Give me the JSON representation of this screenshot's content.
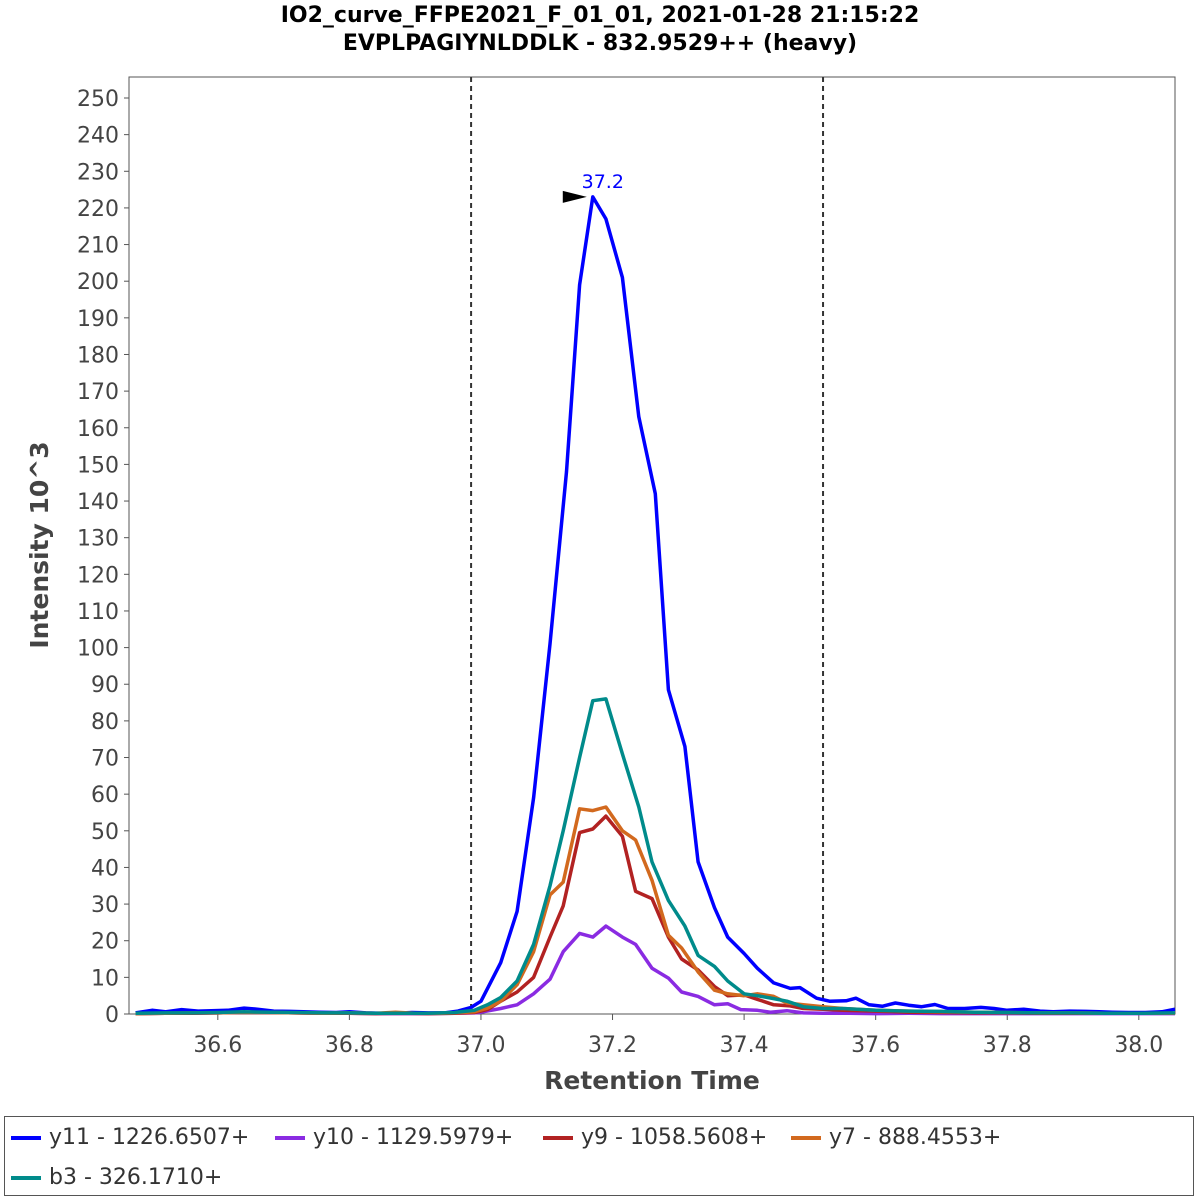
{
  "chart_data": {
    "type": "line",
    "title_line1": "IO2_curve_FFPE2021_F_01_01, 2021-01-28 21:15:22",
    "title_line2": "EVPLPAGIYNLDDLK - 832.9529++ (heavy)",
    "xlabel": "Retention Time",
    "ylabel": "Intensity 10^3",
    "xlim": [
      36.465,
      38.055
    ],
    "ylim": [
      0,
      250
    ],
    "x_ticks": [
      "36.6",
      "36.8",
      "37.0",
      "37.2",
      "37.4",
      "37.6",
      "37.8",
      "38.0"
    ],
    "y_ticks": [
      "0",
      "10",
      "20",
      "30",
      "40",
      "50",
      "60",
      "70",
      "80",
      "90",
      "100",
      "110",
      "120",
      "130",
      "140",
      "150",
      "160",
      "170",
      "180",
      "190",
      "200",
      "210",
      "220",
      "230",
      "240",
      "250"
    ],
    "boundaries": [
      36.985,
      37.52
    ],
    "peak_annotation": {
      "label": "37.2",
      "x": 37.17,
      "y": 223
    },
    "legend_position": "bottom",
    "series": [
      {
        "name": "y11 - 1226.6507+",
        "color": "#0000ff",
        "points": [
          [
            36.475,
            0.3
          ],
          [
            36.5,
            1.0
          ],
          [
            36.52,
            0.6
          ],
          [
            36.545,
            1.2
          ],
          [
            36.57,
            0.8
          ],
          [
            36.59,
            0.9
          ],
          [
            36.615,
            1.0
          ],
          [
            36.64,
            1.6
          ],
          [
            36.66,
            1.3
          ],
          [
            36.685,
            0.8
          ],
          [
            36.71,
            0.7
          ],
          [
            36.73,
            0.6
          ],
          [
            36.755,
            0.5
          ],
          [
            36.78,
            0.4
          ],
          [
            36.8,
            0.6
          ],
          [
            36.825,
            0.3
          ],
          [
            36.85,
            0.2
          ],
          [
            36.87,
            0.2
          ],
          [
            36.895,
            0.4
          ],
          [
            36.92,
            0.3
          ],
          [
            36.945,
            0.3
          ],
          [
            36.965,
            0.8
          ],
          [
            36.985,
            1.8
          ],
          [
            37.0,
            3.5
          ],
          [
            37.03,
            14
          ],
          [
            37.055,
            28
          ],
          [
            37.08,
            59
          ],
          [
            37.105,
            101
          ],
          [
            37.13,
            148
          ],
          [
            37.15,
            199
          ],
          [
            37.17,
            223
          ],
          [
            37.19,
            217
          ],
          [
            37.215,
            201
          ],
          [
            37.24,
            163
          ],
          [
            37.265,
            142
          ],
          [
            37.285,
            88.5
          ],
          [
            37.31,
            73
          ],
          [
            37.33,
            41.5
          ],
          [
            37.355,
            29
          ],
          [
            37.375,
            21
          ],
          [
            37.4,
            16.5
          ],
          [
            37.42,
            12.5
          ],
          [
            37.445,
            8.5
          ],
          [
            37.47,
            7.0
          ],
          [
            37.485,
            7.2
          ],
          [
            37.51,
            4.3
          ],
          [
            37.53,
            3.5
          ],
          [
            37.555,
            3.6
          ],
          [
            37.57,
            4.3
          ],
          [
            37.59,
            2.5
          ],
          [
            37.61,
            2.1
          ],
          [
            37.63,
            3.0
          ],
          [
            37.65,
            2.4
          ],
          [
            37.67,
            2.0
          ],
          [
            37.69,
            2.6
          ],
          [
            37.71,
            1.5
          ],
          [
            37.735,
            1.5
          ],
          [
            37.76,
            1.8
          ],
          [
            37.78,
            1.5
          ],
          [
            37.8,
            1.0
          ],
          [
            37.825,
            1.3
          ],
          [
            37.85,
            0.8
          ],
          [
            37.87,
            0.6
          ],
          [
            37.895,
            0.8
          ],
          [
            37.92,
            0.7
          ],
          [
            37.94,
            0.6
          ],
          [
            37.96,
            0.5
          ],
          [
            37.985,
            0.4
          ],
          [
            38.01,
            0.4
          ],
          [
            38.035,
            0.6
          ],
          [
            38.055,
            1.3
          ]
        ]
      },
      {
        "name": "y10 - 1129.5979+",
        "color": "#8a2be2",
        "points": [
          [
            36.475,
            0.1
          ],
          [
            36.52,
            0.2
          ],
          [
            36.56,
            0.2
          ],
          [
            36.6,
            0.3
          ],
          [
            36.64,
            0.5
          ],
          [
            36.68,
            0.4
          ],
          [
            36.72,
            0.3
          ],
          [
            36.76,
            0.2
          ],
          [
            36.8,
            0.2
          ],
          [
            36.84,
            0.1
          ],
          [
            36.88,
            0.1
          ],
          [
            36.92,
            0.1
          ],
          [
            36.96,
            0.2
          ],
          [
            36.99,
            0.3
          ],
          [
            37.0,
            0.5
          ],
          [
            37.03,
            1.5
          ],
          [
            37.055,
            2.5
          ],
          [
            37.08,
            5.5
          ],
          [
            37.105,
            9.5
          ],
          [
            37.125,
            17
          ],
          [
            37.15,
            22
          ],
          [
            37.17,
            21
          ],
          [
            37.19,
            24
          ],
          [
            37.215,
            21
          ],
          [
            37.235,
            19
          ],
          [
            37.26,
            12.5
          ],
          [
            37.285,
            9.8
          ],
          [
            37.305,
            6.0
          ],
          [
            37.33,
            4.8
          ],
          [
            37.355,
            2.5
          ],
          [
            37.375,
            2.8
          ],
          [
            37.395,
            1.2
          ],
          [
            37.42,
            1.0
          ],
          [
            37.44,
            0.5
          ],
          [
            37.465,
            0.9
          ],
          [
            37.49,
            0.3
          ],
          [
            37.52,
            0.2
          ],
          [
            37.56,
            0.2
          ],
          [
            37.6,
            0.1
          ],
          [
            37.65,
            0.2
          ],
          [
            37.7,
            0.1
          ],
          [
            37.75,
            0.1
          ],
          [
            37.8,
            0.1
          ],
          [
            37.85,
            0.1
          ],
          [
            37.9,
            0.1
          ],
          [
            37.95,
            0.1
          ],
          [
            38.0,
            0.1
          ],
          [
            38.055,
            0.1
          ]
        ]
      },
      {
        "name": "y9 - 1058.5608+",
        "color": "#b22222",
        "points": [
          [
            36.475,
            0.1
          ],
          [
            36.52,
            0.2
          ],
          [
            36.56,
            0.2
          ],
          [
            36.6,
            0.3
          ],
          [
            36.64,
            0.5
          ],
          [
            36.68,
            0.4
          ],
          [
            36.72,
            0.3
          ],
          [
            36.76,
            0.2
          ],
          [
            36.8,
            0.2
          ],
          [
            36.84,
            0.1
          ],
          [
            36.88,
            0.2
          ],
          [
            36.92,
            0.1
          ],
          [
            36.96,
            0.2
          ],
          [
            36.99,
            0.4
          ],
          [
            37.01,
            1.2
          ],
          [
            37.03,
            3.5
          ],
          [
            37.055,
            6
          ],
          [
            37.08,
            10
          ],
          [
            37.105,
            21
          ],
          [
            37.125,
            29.5
          ],
          [
            37.15,
            49.5
          ],
          [
            37.17,
            50.5
          ],
          [
            37.19,
            54
          ],
          [
            37.215,
            48.5
          ],
          [
            37.235,
            33.5
          ],
          [
            37.26,
            31.5
          ],
          [
            37.285,
            21
          ],
          [
            37.305,
            15
          ],
          [
            37.33,
            12
          ],
          [
            37.355,
            7.5
          ],
          [
            37.375,
            5
          ],
          [
            37.4,
            5.2
          ],
          [
            37.42,
            4.0
          ],
          [
            37.445,
            2.5
          ],
          [
            37.47,
            2.2
          ],
          [
            37.49,
            1.5
          ],
          [
            37.52,
            1.3
          ],
          [
            37.55,
            1.0
          ],
          [
            37.6,
            0.8
          ],
          [
            37.65,
            0.5
          ],
          [
            37.7,
            0.4
          ],
          [
            37.75,
            0.3
          ],
          [
            37.8,
            0.3
          ],
          [
            37.85,
            0.2
          ],
          [
            37.9,
            0.2
          ],
          [
            37.95,
            0.2
          ],
          [
            38.0,
            0.2
          ],
          [
            38.055,
            0.2
          ]
        ]
      },
      {
        "name": "y7 - 888.4553+",
        "color": "#d2691e",
        "points": [
          [
            36.475,
            0.1
          ],
          [
            36.52,
            0.2
          ],
          [
            36.56,
            0.3
          ],
          [
            36.6,
            0.3
          ],
          [
            36.64,
            0.5
          ],
          [
            36.68,
            0.4
          ],
          [
            36.72,
            0.3
          ],
          [
            36.76,
            0.2
          ],
          [
            36.8,
            0.3
          ],
          [
            36.84,
            0.2
          ],
          [
            36.87,
            0.5
          ],
          [
            36.9,
            0.2
          ],
          [
            36.94,
            0.2
          ],
          [
            36.97,
            0.4
          ],
          [
            36.99,
            0.6
          ],
          [
            37.01,
            1.6
          ],
          [
            37.03,
            3.5
          ],
          [
            37.055,
            8
          ],
          [
            37.08,
            17
          ],
          [
            37.105,
            32.5
          ],
          [
            37.125,
            36
          ],
          [
            37.15,
            56
          ],
          [
            37.17,
            55.5
          ],
          [
            37.19,
            56.5
          ],
          [
            37.215,
            50
          ],
          [
            37.235,
            47.5
          ],
          [
            37.26,
            36.5
          ],
          [
            37.285,
            21.5
          ],
          [
            37.305,
            18
          ],
          [
            37.33,
            11.5
          ],
          [
            37.355,
            6.5
          ],
          [
            37.375,
            5.5
          ],
          [
            37.4,
            5.0
          ],
          [
            37.42,
            5.5
          ],
          [
            37.445,
            4.8
          ],
          [
            37.465,
            3.0
          ],
          [
            37.49,
            2.5
          ],
          [
            37.52,
            2.0
          ],
          [
            37.55,
            1.5
          ],
          [
            37.6,
            1.0
          ],
          [
            37.65,
            0.8
          ],
          [
            37.7,
            0.6
          ],
          [
            37.75,
            0.5
          ],
          [
            37.8,
            0.4
          ],
          [
            37.85,
            0.3
          ],
          [
            37.9,
            0.3
          ],
          [
            37.95,
            0.2
          ],
          [
            38.0,
            0.2
          ],
          [
            38.055,
            0.2
          ]
        ]
      },
      {
        "name": "b3 - 326.1710+",
        "color": "#008b8b",
        "points": [
          [
            36.475,
            0.2
          ],
          [
            36.52,
            0.3
          ],
          [
            36.56,
            0.3
          ],
          [
            36.6,
            0.4
          ],
          [
            36.64,
            0.6
          ],
          [
            36.68,
            0.5
          ],
          [
            36.72,
            0.4
          ],
          [
            36.76,
            0.3
          ],
          [
            36.8,
            0.3
          ],
          [
            36.84,
            0.2
          ],
          [
            36.88,
            0.2
          ],
          [
            36.92,
            0.2
          ],
          [
            36.96,
            0.4
          ],
          [
            36.99,
            1.0
          ],
          [
            37.01,
            2.5
          ],
          [
            37.03,
            4.5
          ],
          [
            37.055,
            9
          ],
          [
            37.08,
            19
          ],
          [
            37.105,
            35
          ],
          [
            37.125,
            50
          ],
          [
            37.15,
            70
          ],
          [
            37.17,
            85.5
          ],
          [
            37.19,
            86
          ],
          [
            37.215,
            71
          ],
          [
            37.24,
            56.5
          ],
          [
            37.26,
            41.5
          ],
          [
            37.285,
            31
          ],
          [
            37.31,
            24
          ],
          [
            37.33,
            16
          ],
          [
            37.355,
            13
          ],
          [
            37.375,
            9.0
          ],
          [
            37.4,
            5.5
          ],
          [
            37.42,
            5.0
          ],
          [
            37.445,
            4.2
          ],
          [
            37.465,
            3.5
          ],
          [
            37.49,
            2.0
          ],
          [
            37.52,
            1.5
          ],
          [
            37.55,
            1.5
          ],
          [
            37.6,
            1.0
          ],
          [
            37.65,
            0.8
          ],
          [
            37.7,
            0.7
          ],
          [
            37.75,
            0.5
          ],
          [
            37.8,
            0.4
          ],
          [
            37.85,
            0.3
          ],
          [
            37.9,
            0.3
          ],
          [
            37.95,
            0.2
          ],
          [
            38.0,
            0.2
          ],
          [
            38.055,
            0.3
          ]
        ]
      }
    ]
  }
}
